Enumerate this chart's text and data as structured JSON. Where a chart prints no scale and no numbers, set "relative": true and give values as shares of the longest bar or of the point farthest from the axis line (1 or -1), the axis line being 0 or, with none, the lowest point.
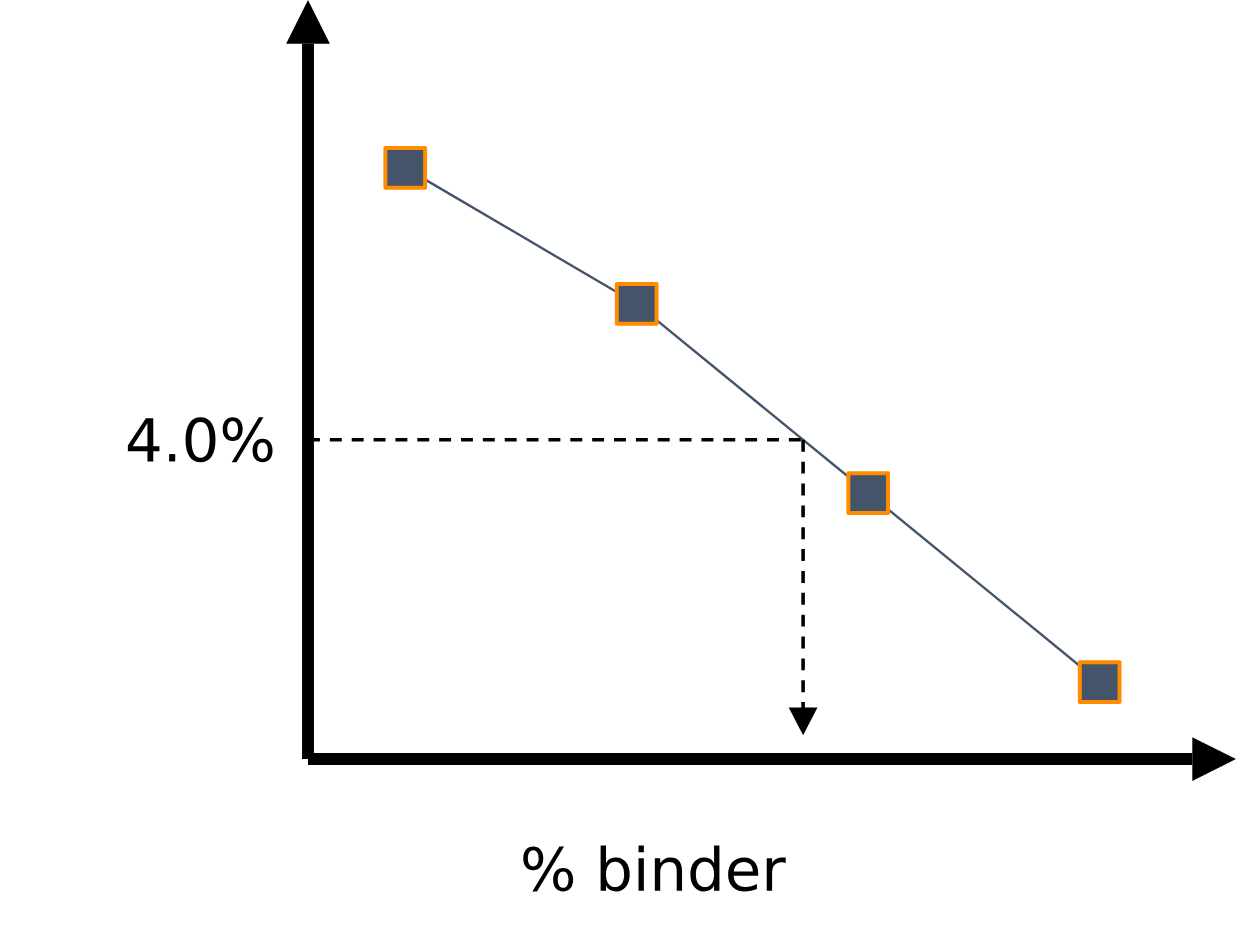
{
  "chart_data": {
    "type": "line",
    "categories": [
      null,
      null,
      null,
      null
    ],
    "relative": true,
    "marker": "square",
    "xlabel": "% binder",
    "series": [
      {
        "color": "#44546a",
        "values": [
          1,
          0.77,
          0.45,
          0.13
        ]
      }
    ],
    "ref_lines": [
      {
        "axis": "y",
        "value": 0.54,
        "line_style": "dashed"
      }
    ],
    "annotations": [
      "4.0%"
    ]
  }
}
